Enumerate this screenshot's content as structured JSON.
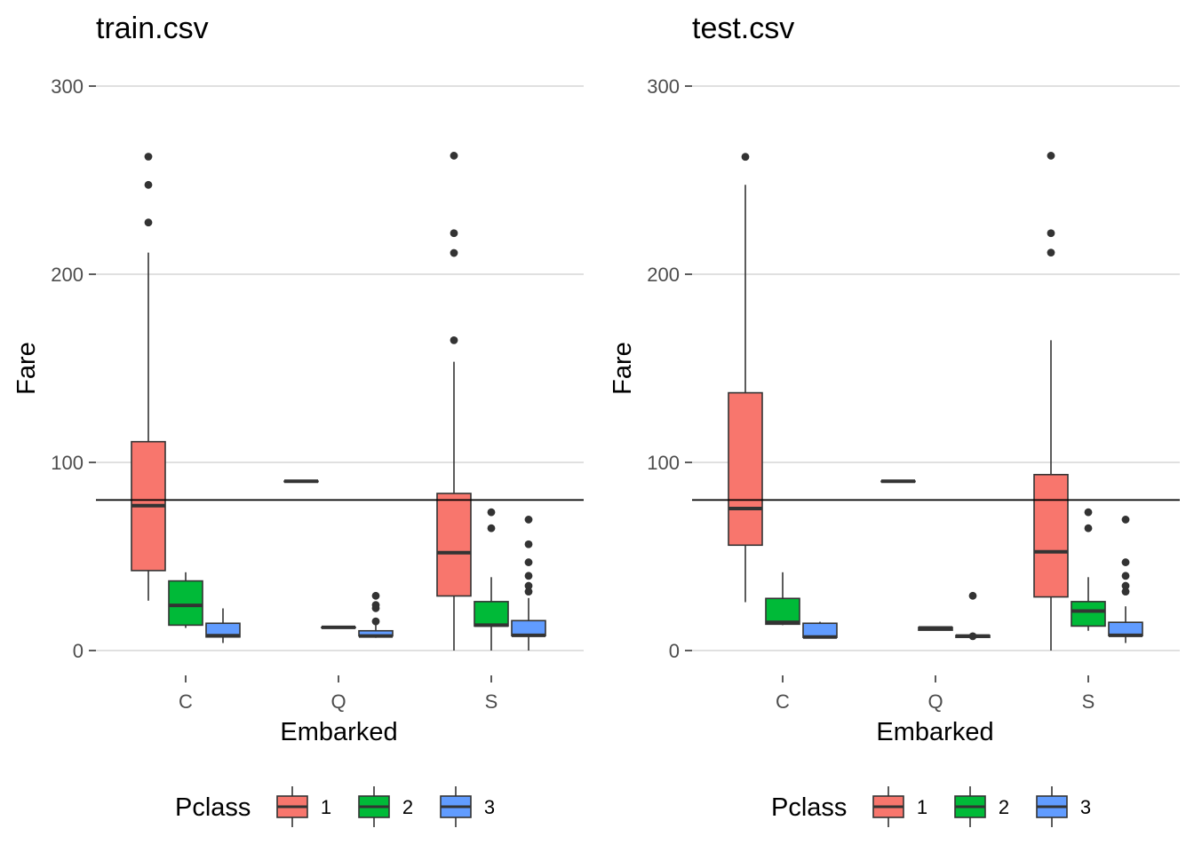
{
  "chart_data": [
    {
      "type": "boxplot",
      "title": "train.csv",
      "xlabel": "Embarked",
      "ylabel": "Fare",
      "categories": [
        "C",
        "Q",
        "S"
      ],
      "yticks": [
        0,
        100,
        200,
        300
      ],
      "ylim": [
        -12,
        320
      ],
      "grid": "horizontal-major",
      "hline": 80,
      "legend": {
        "title": "Pclass",
        "position": "bottom",
        "entries": [
          "1",
          "2",
          "3"
        ]
      },
      "series": [
        {
          "name": "1",
          "color": "#F8766D",
          "boxes": [
            {
              "category": "C",
              "lower": 26.5,
              "q1": 42.5,
              "median": 77,
              "q3": 111,
              "upper": 211.5,
              "outliers": [
                227.5,
                247.5,
                262.5
              ]
            },
            {
              "category": "Q",
              "lower": 90,
              "q1": 90,
              "median": 90,
              "q3": 90,
              "upper": 90,
              "outliers": []
            },
            {
              "category": "S",
              "lower": 0,
              "q1": 29,
              "median": 52,
              "q3": 83.5,
              "upper": 153.5,
              "outliers": [
                164.9,
                211.3,
                221.8,
                263
              ]
            }
          ]
        },
        {
          "name": "2",
          "color": "#00BA38",
          "boxes": [
            {
              "category": "C",
              "lower": 12,
              "q1": 13.5,
              "median": 24,
              "q3": 37,
              "upper": 41.6,
              "outliers": []
            },
            {
              "category": "Q",
              "lower": 12.35,
              "q1": 12.35,
              "median": 12.35,
              "q3": 12.35,
              "upper": 12.35,
              "outliers": []
            },
            {
              "category": "S",
              "lower": 0,
              "q1": 13,
              "median": 13.5,
              "q3": 26,
              "upper": 39,
              "outliers": [
                65,
                73.5
              ]
            }
          ]
        },
        {
          "name": "3",
          "color": "#619CFF",
          "boxes": [
            {
              "category": "C",
              "lower": 4,
              "q1": 7.2,
              "median": 7.9,
              "q3": 14.5,
              "upper": 22.4,
              "outliers": []
            },
            {
              "category": "Q",
              "lower": 6.75,
              "q1": 7.75,
              "median": 7.75,
              "q3": 10.5,
              "upper": 15.5,
              "outliers": [
                15.5,
                22.5,
                24.2,
                29.1
              ]
            },
            {
              "category": "S",
              "lower": 0,
              "q1": 7.9,
              "median": 8.05,
              "q3": 15.9,
              "upper": 27.9,
              "outliers": [
                31.3,
                34.4,
                39.7,
                46.9,
                56.5,
                69.6
              ]
            }
          ]
        }
      ]
    },
    {
      "type": "boxplot",
      "title": "test.csv",
      "xlabel": "Embarked",
      "ylabel": "Fare",
      "categories": [
        "C",
        "Q",
        "S"
      ],
      "yticks": [
        0,
        100,
        200,
        300
      ],
      "ylim": [
        -12,
        320
      ],
      "grid": "horizontal-major",
      "hline": 80,
      "legend": {
        "title": "Pclass",
        "position": "bottom",
        "entries": [
          "1",
          "2",
          "3"
        ]
      },
      "series": [
        {
          "name": "1",
          "color": "#F8766D",
          "boxes": [
            {
              "category": "C",
              "lower": 25.7,
              "q1": 56,
              "median": 75.5,
              "q3": 137,
              "upper": 247.5,
              "outliers": [
                262.4
              ]
            },
            {
              "category": "Q",
              "lower": 90,
              "q1": 90,
              "median": 90,
              "q3": 90,
              "upper": 90,
              "outliers": []
            },
            {
              "category": "S",
              "lower": 0,
              "q1": 28.5,
              "median": 52.5,
              "q3": 93.5,
              "upper": 164.9,
              "outliers": [
                211.5,
                221.8,
                263
              ]
            }
          ]
        },
        {
          "name": "2",
          "color": "#00BA38",
          "boxes": [
            {
              "category": "C",
              "lower": 13.5,
              "q1": 14,
              "median": 15,
              "q3": 27.7,
              "upper": 41.6,
              "outliers": []
            },
            {
              "category": "Q",
              "lower": 10.8,
              "q1": 10.8,
              "median": 12,
              "q3": 12.3,
              "upper": 12.35,
              "outliers": []
            },
            {
              "category": "S",
              "lower": 10.5,
              "q1": 13,
              "median": 21,
              "q3": 26,
              "upper": 39,
              "outliers": [
                65,
                73.5
              ]
            }
          ]
        },
        {
          "name": "3",
          "color": "#619CFF",
          "boxes": [
            {
              "category": "C",
              "lower": 6.4,
              "q1": 7,
              "median": 7.2,
              "q3": 14.5,
              "upper": 15.3,
              "outliers": []
            },
            {
              "category": "Q",
              "lower": 6.8,
              "q1": 7,
              "median": 7.75,
              "q3": 8.05,
              "upper": 8.3,
              "outliers": [
                7.6,
                29.1
              ]
            },
            {
              "category": "S",
              "lower": 4,
              "q1": 7.9,
              "median": 8.05,
              "q3": 15,
              "upper": 23.5,
              "outliers": [
                31.3,
                34.4,
                39.7,
                46.9,
                69.6
              ]
            }
          ]
        }
      ]
    }
  ]
}
